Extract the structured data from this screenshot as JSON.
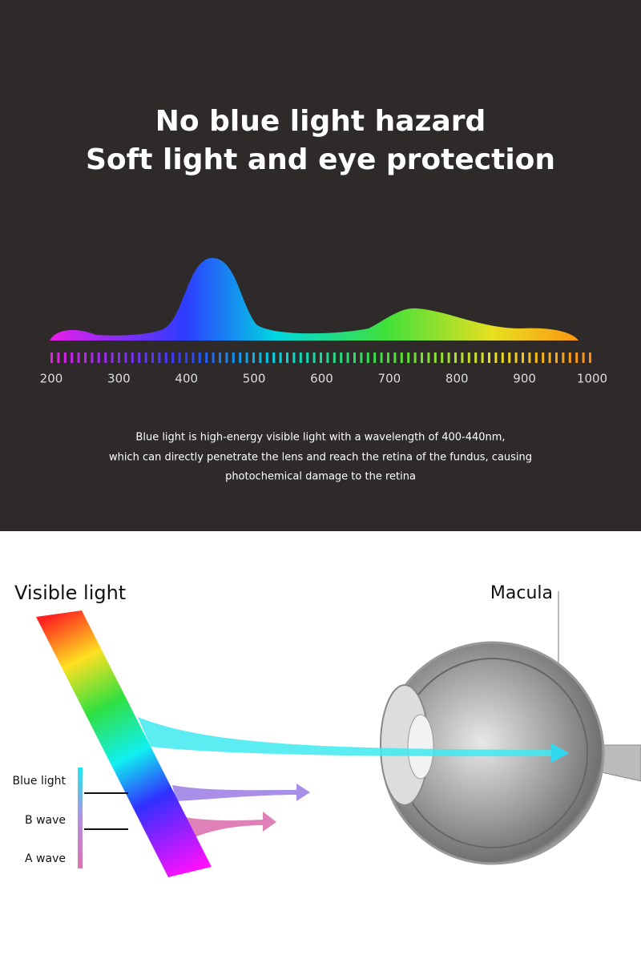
{
  "header": {
    "title_lines": [
      "No blue light hazard",
      "Soft light and eye protection"
    ]
  },
  "spectrum": {
    "axis_labels": [
      200,
      300,
      400,
      500,
      600,
      700,
      800,
      900,
      1000
    ]
  },
  "description": {
    "lines": [
      "Blue light is high-energy visible light with a wavelength of 400-440nm,",
      "which can directly penetrate the lens and reach the retina of the fundus, causing",
      "photochemical damage to the retina"
    ]
  },
  "diagram": {
    "visible_light": "Visible light",
    "macula": "Macula",
    "legend": [
      "Blue light",
      "B wave",
      "A wave"
    ]
  }
}
